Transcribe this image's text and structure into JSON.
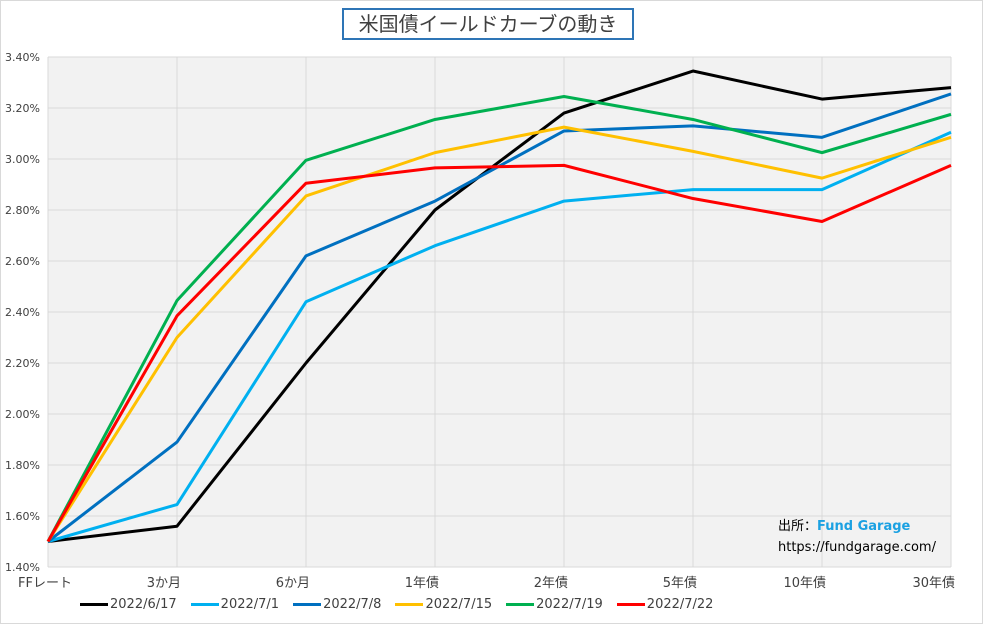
{
  "chart_data": {
    "type": "line",
    "title": "米国債イールドカーブの動き",
    "categories": [
      "FFレート",
      "3か月",
      "6か月",
      "1年債",
      "2年債",
      "5年債",
      "10年債",
      "30年債"
    ],
    "ylim": [
      1.4,
      3.4
    ],
    "yticks": [
      "1.40%",
      "1.60%",
      "1.80%",
      "2.00%",
      "2.20%",
      "2.40%",
      "2.60%",
      "2.80%",
      "3.00%",
      "3.20%",
      "3.40%"
    ],
    "grid": true,
    "legend": "bottom",
    "series": [
      {
        "name": "2022/6/17",
        "color": "#000000",
        "values": [
          1.5,
          1.56,
          2.2,
          2.8,
          3.18,
          3.345,
          3.235,
          3.28
        ]
      },
      {
        "name": "2022/7/1",
        "color": "#00b0f0",
        "values": [
          1.5,
          1.645,
          2.44,
          2.66,
          2.835,
          2.88,
          2.88,
          3.105
        ]
      },
      {
        "name": "2022/7/8",
        "color": "#0070c0",
        "values": [
          1.5,
          1.89,
          2.62,
          2.835,
          3.11,
          3.13,
          3.085,
          3.255
        ]
      },
      {
        "name": "2022/7/15",
        "color": "#ffc000",
        "values": [
          1.5,
          2.3,
          2.855,
          3.025,
          3.125,
          3.03,
          2.925,
          3.085
        ]
      },
      {
        "name": "2022/7/19",
        "color": "#00b050",
        "values": [
          1.5,
          2.445,
          2.995,
          3.155,
          3.245,
          3.155,
          3.025,
          3.175
        ]
      },
      {
        "name": "2022/7/22",
        "color": "#ff0000",
        "values": [
          1.5,
          2.385,
          2.905,
          2.965,
          2.975,
          2.845,
          2.755,
          2.975
        ]
      }
    ]
  },
  "source": {
    "label": "出所：",
    "name": "Fund Garage",
    "url": "https://fundgarage.com/"
  }
}
